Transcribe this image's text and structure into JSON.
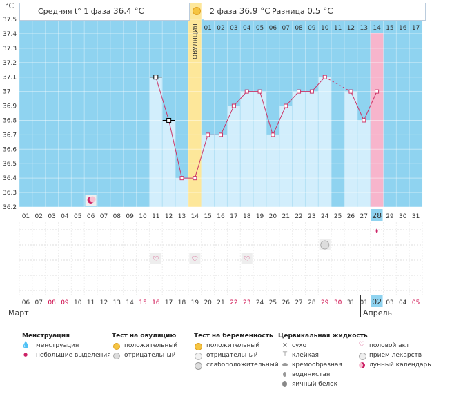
{
  "header": {
    "phase1_label": "Средняя t° 1 фаза",
    "phase1_value": "36.4 °C",
    "phase2_label": "2 фаза",
    "phase2_value": "36.9 °C",
    "diff_label": "Разница",
    "diff_value": "0.5 °C"
  },
  "chart_data": {
    "type": "line",
    "unit": "°C",
    "ylim": [
      36.2,
      37.5
    ],
    "yticks": [
      "36.2",
      "36.3",
      "36.4",
      "36.5",
      "36.6",
      "36.7",
      "36.8",
      "36.9",
      "37",
      "37.1",
      "37.2",
      "37.3",
      "37.4",
      "37.5"
    ],
    "cycle_days": [
      "01",
      "02",
      "03",
      "04",
      "05",
      "06",
      "07",
      "08",
      "09",
      "10",
      "11",
      "12",
      "13",
      "14",
      "15",
      "16",
      "17",
      "18",
      "19",
      "20",
      "21",
      "22",
      "23",
      "24",
      "25",
      "26",
      "27",
      "28",
      "29",
      "30",
      "31"
    ],
    "dates": [
      "06",
      "07",
      "08",
      "09",
      "10",
      "11",
      "12",
      "13",
      "14",
      "15",
      "16",
      "17",
      "18",
      "19",
      "20",
      "21",
      "22",
      "23",
      "24",
      "25",
      "26",
      "27",
      "28",
      "29",
      "30",
      "31",
      "01",
      "02",
      "03",
      "04",
      "05"
    ],
    "weekend_dates_index": [
      2,
      3,
      9,
      10,
      16,
      17,
      23,
      24,
      30
    ],
    "post_ovulation_days": [
      "01",
      "02",
      "03",
      "04",
      "05",
      "06",
      "07",
      "08",
      "09",
      "10",
      "11",
      "12",
      "13",
      "14",
      "15",
      "16",
      "17"
    ],
    "ovulation_label": "ОВУЛЯЦИЯ",
    "ovulation_day_index": 13,
    "today_day_index": 27,
    "temperatures": [
      {
        "day": 11,
        "value": 37.1,
        "marker": "excluded"
      },
      {
        "day": 12,
        "value": 36.8,
        "marker": "excluded"
      },
      {
        "day": 13,
        "value": 36.4
      },
      {
        "day": 14,
        "value": 36.4
      },
      {
        "day": 15,
        "value": 36.7
      },
      {
        "day": 16,
        "value": 36.7
      },
      {
        "day": 17,
        "value": 36.9
      },
      {
        "day": 18,
        "value": 37.0
      },
      {
        "day": 19,
        "value": 37.0
      },
      {
        "day": 20,
        "value": 36.7
      },
      {
        "day": 21,
        "value": 36.9
      },
      {
        "day": 22,
        "value": 37.0
      },
      {
        "day": 23,
        "value": 37.0
      },
      {
        "day": 24,
        "value": 37.1
      },
      {
        "day": 26,
        "value": 37.0
      },
      {
        "day": 27,
        "value": 36.8
      },
      {
        "day": 28,
        "value": 37.0
      }
    ],
    "events": [
      {
        "day": 6,
        "row": 0,
        "icon": "moon-icon"
      },
      {
        "day": 28,
        "row": 1,
        "icon": "drop-icon"
      },
      {
        "day": 24,
        "row": 2,
        "icon": "pregnancy-test-icon"
      },
      {
        "day": 11,
        "row": 3,
        "icon": "heart-icon"
      },
      {
        "day": 14,
        "row": 3,
        "icon": "heart-icon"
      },
      {
        "day": 18,
        "row": 3,
        "icon": "heart-icon"
      }
    ],
    "months": [
      "Март",
      "Апрель"
    ],
    "colors": {
      "background": "#8fd3f0",
      "column": "#d2eefc",
      "ovulation": "#fde79a",
      "today": "#f7b5cc",
      "line": "#cc3366",
      "weekend": "#cc0044"
    }
  },
  "legend": {
    "menstruation": {
      "title": "Менструация",
      "items": [
        {
          "icon": "drop-icon",
          "label": "менструация"
        },
        {
          "icon": "small-drop-icon",
          "label": "небольшие выделения"
        }
      ]
    },
    "ovulation_test": {
      "title": "Тест на овуляцию",
      "items": [
        {
          "icon": "positive-test-icon",
          "label": "положительный"
        },
        {
          "icon": "negative-test-icon",
          "label": "отрицательный"
        }
      ]
    },
    "pregnancy_test": {
      "title": "Тест на беременность",
      "items": [
        {
          "icon": "positive-test-icon",
          "label": "положительный"
        },
        {
          "icon": "negative-test-icon",
          "label": "отрицательный"
        },
        {
          "icon": "weak-test-icon",
          "label": "слабоположительный"
        }
      ]
    },
    "cervical": {
      "title": "Цервикальная жидкость",
      "items": [
        {
          "icon": "cross-icon",
          "label": "сухо"
        },
        {
          "icon": "sticky-icon",
          "label": "клейкая"
        },
        {
          "icon": "creamy-icon",
          "label": "кремообразная"
        },
        {
          "icon": "watery-icon",
          "label": "водянистая"
        },
        {
          "icon": "eggwhite-icon",
          "label": "яичный белок"
        }
      ]
    },
    "other": {
      "items": [
        {
          "icon": "heart-icon",
          "label": "половой акт"
        },
        {
          "icon": "pill-icon",
          "label": "прием лекарств"
        },
        {
          "icon": "moon-icon",
          "label": "лунный календарь"
        }
      ]
    }
  }
}
